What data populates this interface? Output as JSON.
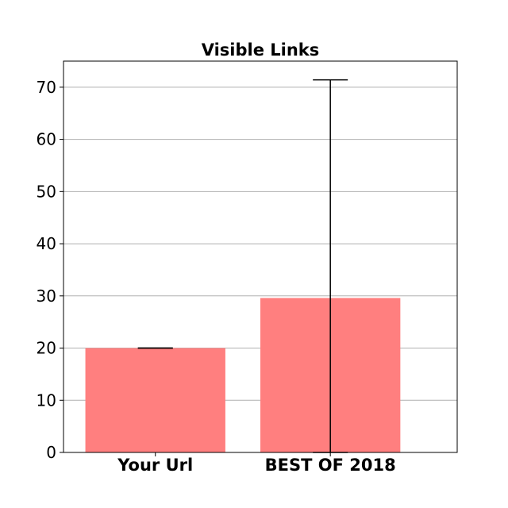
{
  "chart_data": {
    "type": "bar",
    "title": "Visible Links",
    "xlabel": "",
    "ylabel": "",
    "categories": [
      "Your Url",
      "BEST OF 2018"
    ],
    "values": [
      20,
      29.6
    ],
    "error_upper": [
      20,
      71.4
    ],
    "error_lower": [
      20,
      0
    ],
    "ylim": [
      0,
      75
    ],
    "yticks": [
      0,
      10,
      20,
      30,
      40,
      50,
      60,
      70
    ],
    "grid": "y",
    "bar_color": "#ff7f7f",
    "error_color": "#000000"
  }
}
